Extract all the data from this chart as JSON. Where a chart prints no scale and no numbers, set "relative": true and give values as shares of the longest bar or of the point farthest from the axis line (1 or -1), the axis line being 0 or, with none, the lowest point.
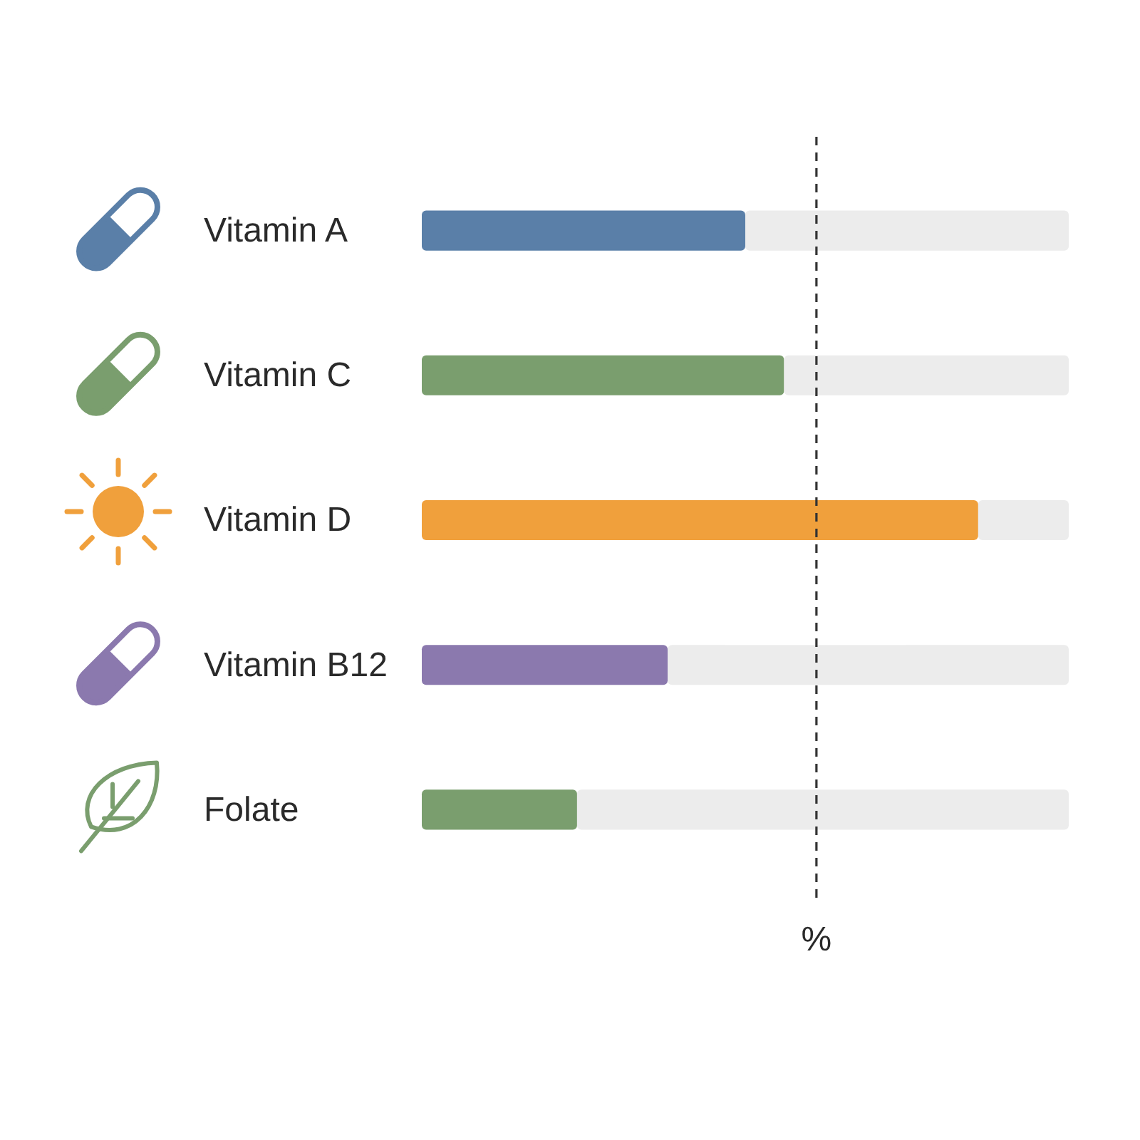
{
  "chart_data": {
    "type": "bar",
    "orientation": "horizontal",
    "stacked": true,
    "relative": true,
    "categories": [
      "Vitamin A",
      "Vitamin C",
      "Vitamin D",
      "Vitamin B12",
      "Folate"
    ],
    "series": [
      {
        "colors": [
          "#5a7fa8",
          "#7a9e6e",
          "#f0a03c",
          "#8b79ae",
          "#7a9e6e"
        ],
        "values": [
          0.5,
          0.56,
          0.86,
          0.38,
          0.24
        ]
      },
      {
        "color": "#ececec",
        "values": [
          0.5,
          0.44,
          0.14,
          0.62,
          0.76
        ]
      }
    ],
    "ref_lines": [
      {
        "axis": "x",
        "value": 0.61,
        "label": "%",
        "line_style": "dashed",
        "color": "#333333"
      }
    ]
  }
}
